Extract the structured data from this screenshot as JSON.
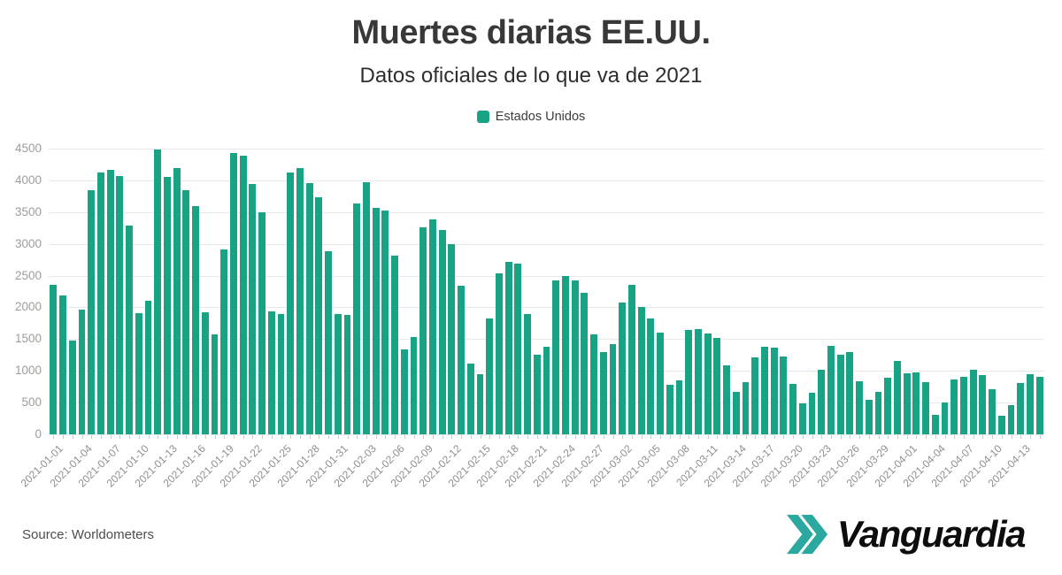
{
  "header": {
    "title": "Muertes diarias EE.UU.",
    "subtitle": "Datos oficiales de lo que va de 2021"
  },
  "legend": {
    "label": "Estados Unidos",
    "swatch_color": "#18a385"
  },
  "source": {
    "label": "Source: Worldometers"
  },
  "logo": {
    "text": "Vanguardia",
    "chevrons_color": "#2BA9A1"
  },
  "colors": {
    "bar": "#18a385",
    "gridline": "#e9e9e9",
    "axis_text": "#9c9c9c"
  },
  "chart_data": {
    "type": "bar",
    "title": "Muertes diarias EE.UU.",
    "series_name": "Estados Unidos",
    "xlabel": "",
    "ylabel": "",
    "ylim": [
      0,
      4500
    ],
    "y_ticks": [
      0,
      500,
      1000,
      1500,
      2000,
      2500,
      3000,
      3500,
      4000,
      4500
    ],
    "grid": true,
    "legend_position": "top",
    "x_tick_interval": 3,
    "x_tick_labels": [
      "2021-01-01",
      "2021-01-04",
      "2021-01-07",
      "2021-01-10",
      "2021-01-13",
      "2021-01-16",
      "2021-01-19",
      "2021-01-22",
      "2021-01-25",
      "2021-01-28",
      "2021-01-31",
      "2021-02-03",
      "2021-02-06",
      "2021-02-09",
      "2021-02-12",
      "2021-02-15",
      "2021-02-18",
      "2021-02-21",
      "2021-02-24",
      "2021-02-27",
      "2021-03-02",
      "2021-03-05",
      "2021-03-08",
      "2021-03-11",
      "2021-03-14",
      "2021-03-17",
      "2021-03-20",
      "2021-03-23",
      "2021-03-26",
      "2021-03-29",
      "2021-04-01",
      "2021-04-04",
      "2021-04-07",
      "2021-04-10",
      "2021-04-13"
    ],
    "categories": [
      "2021-01-01",
      "2021-01-02",
      "2021-01-03",
      "2021-01-04",
      "2021-01-05",
      "2021-01-06",
      "2021-01-07",
      "2021-01-08",
      "2021-01-09",
      "2021-01-10",
      "2021-01-11",
      "2021-01-12",
      "2021-01-13",
      "2021-01-14",
      "2021-01-15",
      "2021-01-16",
      "2021-01-17",
      "2021-01-18",
      "2021-01-19",
      "2021-01-20",
      "2021-01-21",
      "2021-01-22",
      "2021-01-23",
      "2021-01-24",
      "2021-01-25",
      "2021-01-26",
      "2021-01-27",
      "2021-01-28",
      "2021-01-29",
      "2021-01-30",
      "2021-01-31",
      "2021-02-01",
      "2021-02-02",
      "2021-02-03",
      "2021-02-04",
      "2021-02-05",
      "2021-02-06",
      "2021-02-07",
      "2021-02-08",
      "2021-02-09",
      "2021-02-10",
      "2021-02-11",
      "2021-02-12",
      "2021-02-13",
      "2021-02-14",
      "2021-02-15",
      "2021-02-16",
      "2021-02-17",
      "2021-02-18",
      "2021-02-19",
      "2021-02-20",
      "2021-02-21",
      "2021-02-22",
      "2021-02-23",
      "2021-02-24",
      "2021-02-25",
      "2021-02-26",
      "2021-02-27",
      "2021-02-28",
      "2021-03-01",
      "2021-03-02",
      "2021-03-03",
      "2021-03-04",
      "2021-03-05",
      "2021-03-06",
      "2021-03-07",
      "2021-03-08",
      "2021-03-09",
      "2021-03-10",
      "2021-03-11",
      "2021-03-12",
      "2021-03-13",
      "2021-03-14",
      "2021-03-15",
      "2021-03-16",
      "2021-03-17",
      "2021-03-18",
      "2021-03-19",
      "2021-03-20",
      "2021-03-21",
      "2021-03-22",
      "2021-03-23",
      "2021-03-24",
      "2021-03-25",
      "2021-03-26",
      "2021-03-27",
      "2021-03-28",
      "2021-03-29",
      "2021-03-30",
      "2021-03-31",
      "2021-04-01",
      "2021-04-02",
      "2021-04-03",
      "2021-04-04",
      "2021-04-05",
      "2021-04-06",
      "2021-04-07",
      "2021-04-08",
      "2021-04-09",
      "2021-04-10",
      "2021-04-11",
      "2021-04-12",
      "2021-04-13",
      "2021-04-14",
      "2021-04-15"
    ],
    "values": [
      2360,
      2190,
      1480,
      1970,
      3840,
      4130,
      4160,
      4070,
      3290,
      1910,
      2100,
      4480,
      4060,
      4200,
      3850,
      3600,
      1920,
      1580,
      2910,
      4430,
      4390,
      3940,
      3500,
      1930,
      1900,
      4120,
      4200,
      3960,
      3740,
      2880,
      1900,
      1880,
      3630,
      3970,
      3565,
      3530,
      2810,
      1340,
      1530,
      3260,
      3390,
      3220,
      3000,
      2340,
      1120,
      950,
      1820,
      2540,
      2720,
      2690,
      1900,
      1250,
      1380,
      2420,
      2490,
      2430,
      2230,
      1570,
      1300,
      1420,
      2080,
      2360,
      2010,
      1820,
      1600,
      780,
      855,
      1640,
      1660,
      1590,
      1520,
      1080,
      665,
      820,
      1210,
      1380,
      1370,
      1220,
      790,
      490,
      655,
      1020,
      1390,
      1260,
      1290,
      840,
      550,
      665,
      885,
      1150,
      965,
      980,
      820,
      310,
      505,
      860,
      905,
      1015,
      940,
      710,
      290,
      465,
      805,
      945,
      910
    ]
  }
}
